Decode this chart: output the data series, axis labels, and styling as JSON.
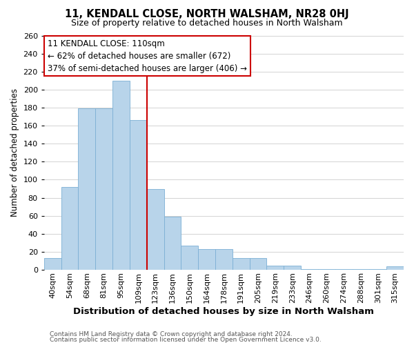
{
  "title": "11, KENDALL CLOSE, NORTH WALSHAM, NR28 0HJ",
  "subtitle": "Size of property relative to detached houses in North Walsham",
  "xlabel": "Distribution of detached houses by size in North Walsham",
  "ylabel": "Number of detached properties",
  "footer_line1": "Contains HM Land Registry data © Crown copyright and database right 2024.",
  "footer_line2": "Contains public sector information licensed under the Open Government Licence v3.0.",
  "bar_labels": [
    "40sqm",
    "54sqm",
    "68sqm",
    "81sqm",
    "95sqm",
    "109sqm",
    "123sqm",
    "136sqm",
    "150sqm",
    "164sqm",
    "178sqm",
    "191sqm",
    "205sqm",
    "219sqm",
    "233sqm",
    "246sqm",
    "260sqm",
    "274sqm",
    "288sqm",
    "301sqm",
    "315sqm"
  ],
  "bar_values": [
    13,
    92,
    179,
    179,
    210,
    166,
    90,
    59,
    27,
    23,
    23,
    13,
    13,
    5,
    5,
    1,
    1,
    1,
    1,
    1,
    4
  ],
  "bar_color": "#b8d4ea",
  "bar_edge_color": "#7bafd4",
  "reference_line_index": 5,
  "annotation_title": "11 KENDALL CLOSE: 110sqm",
  "annotation_line1": "← 62% of detached houses are smaller (672)",
  "annotation_line2": "37% of semi-detached houses are larger (406) →",
  "annotation_box_color": "#ffffff",
  "annotation_box_edge": "#cc0000",
  "reference_line_color": "#cc0000",
  "ylim": [
    0,
    260
  ],
  "yticks": [
    0,
    20,
    40,
    60,
    80,
    100,
    120,
    140,
    160,
    180,
    200,
    220,
    240,
    260
  ],
  "background_color": "#ffffff",
  "grid_color": "#cccccc",
  "title_fontsize": 10.5,
  "subtitle_fontsize": 9,
  "xlabel_fontsize": 9.5,
  "ylabel_fontsize": 8.5,
  "tick_fontsize": 8,
  "annotation_fontsize": 8.5,
  "footer_fontsize": 6.5,
  "footer_color": "#555555"
}
